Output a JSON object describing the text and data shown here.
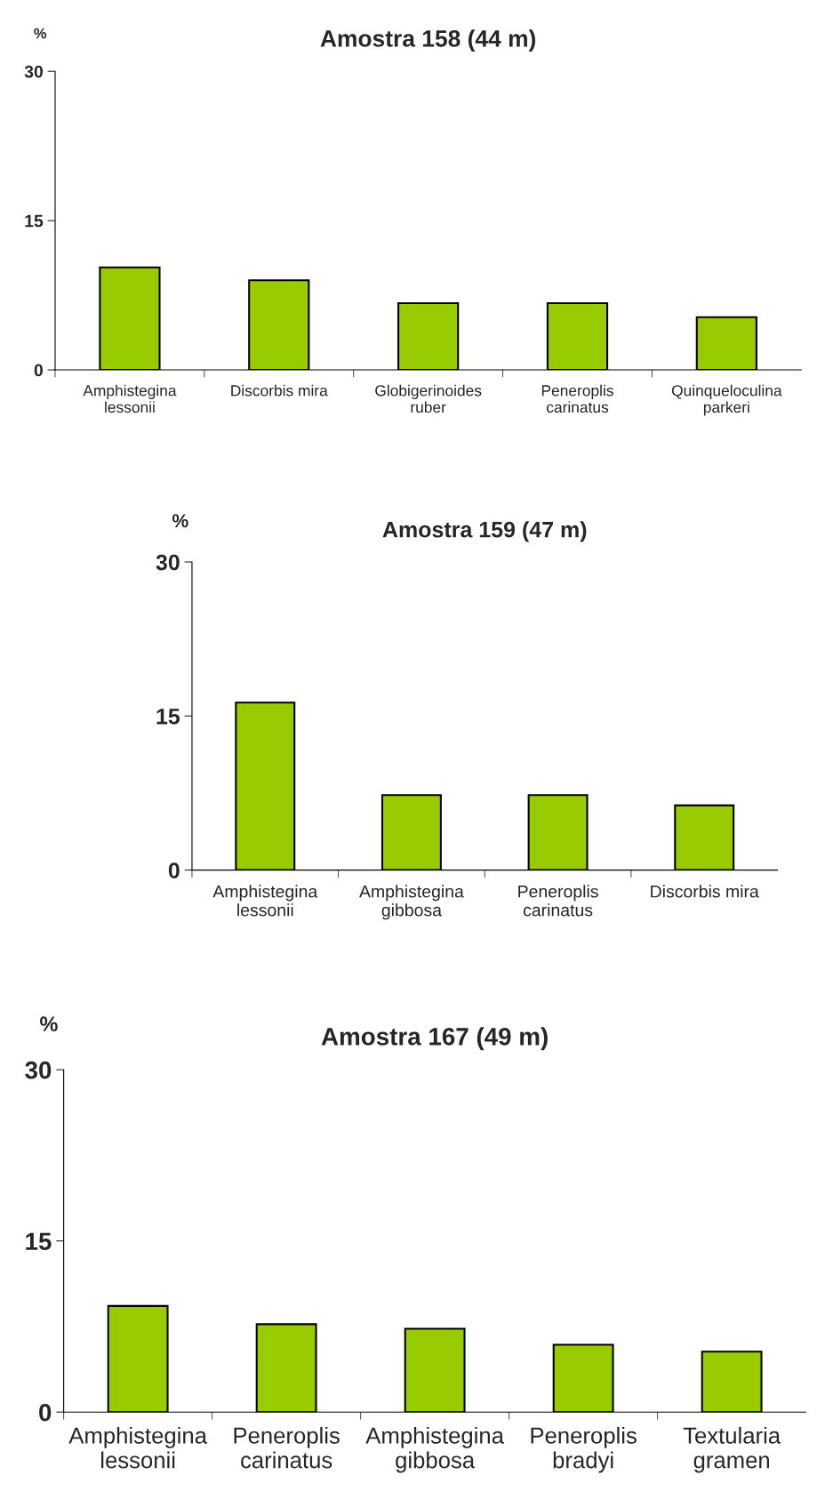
{
  "chart_data": [
    {
      "type": "bar",
      "title": "Amostra 158 (44 m)",
      "ylabel": "%",
      "categories": [
        "Amphistegina\nlessonii",
        "Discorbis mira",
        "Globigerinoides\nruber",
        "Peneroplis\ncarinatus",
        "Quinqueloculina\nparkeri"
      ],
      "values": [
        10.3,
        9.0,
        6.7,
        6.7,
        5.3
      ],
      "color": "#99cc00",
      "ylim": [
        0,
        30
      ],
      "yticks": [
        0,
        15,
        30
      ],
      "grid": false,
      "legend": false
    },
    {
      "type": "bar",
      "title": "Amostra 159 (47 m)",
      "ylabel": "%",
      "categories": [
        "Amphistegina\nlessonii",
        "Amphistegina\ngibbosa",
        "Peneroplis\ncarinatus",
        "Discorbis mira"
      ],
      "values": [
        16.3,
        7.3,
        7.3,
        6.3
      ],
      "color": "#99cc00",
      "ylim": [
        0,
        30
      ],
      "yticks": [
        0,
        15,
        30
      ],
      "grid": false,
      "legend": false
    },
    {
      "type": "bar",
      "title": "Amostra 167 (49 m)",
      "ylabel": "%",
      "categories": [
        "Amphistegina\nlessonii",
        "Peneroplis\ncarinatus",
        "Amphistegina\ngibbosa",
        "Peneroplis\nbradyi",
        "Textularia\ngramen"
      ],
      "values": [
        9.3,
        7.7,
        7.3,
        5.9,
        5.3
      ],
      "color": "#99cc00",
      "ylim": [
        0,
        30
      ],
      "yticks": [
        0,
        15,
        30
      ],
      "grid": false,
      "legend": false
    }
  ]
}
